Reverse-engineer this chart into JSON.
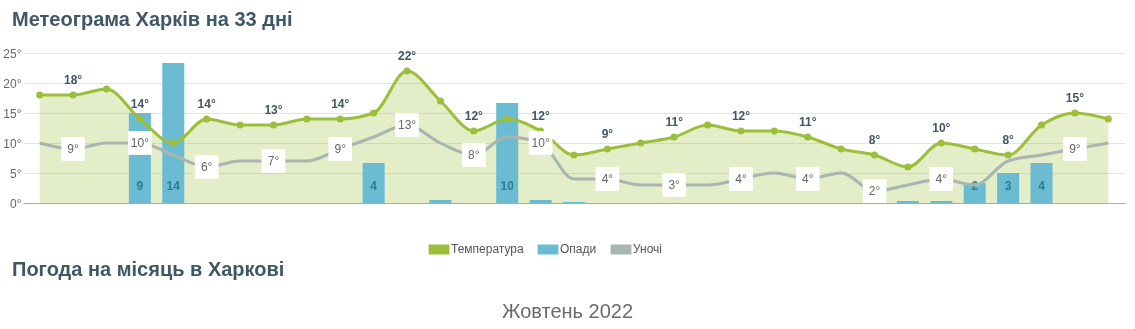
{
  "chart_data": {
    "type": "line",
    "title": "Метеограма Харків на 33 дні",
    "annotations": [
      "Погода на місяць в Харкові",
      "Жовтень 2022"
    ],
    "categories": [
      null,
      null,
      null,
      null,
      null,
      null,
      null,
      null,
      null,
      null,
      null,
      null,
      null,
      null,
      null,
      null,
      null,
      null,
      null,
      null,
      null,
      null,
      null,
      null,
      null,
      null,
      null,
      null,
      null,
      null,
      null,
      null,
      null
    ],
    "series": [
      {
        "name": "Температура",
        "type": "area",
        "marker": "circle",
        "color": "#9bbf3a",
        "values": [
          18,
          18,
          19,
          14,
          10,
          14,
          13,
          13,
          14,
          14,
          15,
          22,
          17,
          12,
          14,
          12,
          8,
          9,
          10,
          11,
          13,
          12,
          12,
          11,
          9,
          8,
          6,
          10,
          9,
          8,
          13,
          15,
          14
        ],
        "value_labels": [
          null,
          "18°",
          null,
          "14°",
          null,
          "14°",
          null,
          "13°",
          null,
          "14°",
          null,
          "22°",
          null,
          "12°",
          null,
          "12°",
          null,
          "9°",
          null,
          "11°",
          null,
          "12°",
          null,
          "11°",
          null,
          "8°",
          null,
          "10°",
          null,
          "8°",
          null,
          "15°",
          null
        ]
      },
      {
        "name": "Опади",
        "type": "bar",
        "axis": "y2",
        "color": "#6bbcd3",
        "values": [
          0,
          0,
          0,
          9,
          14,
          0,
          0,
          0,
          0,
          0,
          4,
          0,
          0.3,
          0,
          10,
          0.3,
          0.1,
          0,
          0,
          0,
          0,
          0,
          0,
          0,
          0,
          0,
          0.2,
          0.2,
          2,
          3,
          4,
          0,
          0
        ],
        "value_labels": [
          null,
          null,
          null,
          "9",
          "14",
          null,
          null,
          null,
          null,
          null,
          "4",
          null,
          null,
          null,
          "10",
          null,
          null,
          null,
          null,
          null,
          null,
          null,
          null,
          null,
          null,
          null,
          null,
          null,
          "2",
          "3",
          "4",
          null,
          null
        ]
      },
      {
        "name": "Уночі",
        "color": "#a9b5b1",
        "values": [
          10,
          9,
          10,
          10,
          8,
          6,
          7,
          7,
          7,
          9,
          11,
          13,
          10,
          8,
          11,
          10,
          4,
          4,
          3,
          3,
          3,
          4,
          5,
          4,
          5,
          2,
          3,
          4,
          3,
          7,
          8,
          9,
          10
        ],
        "value_labels": [
          null,
          "9°",
          null,
          "10°",
          null,
          "6°",
          null,
          "7°",
          null,
          "9°",
          null,
          "13°",
          null,
          "8°",
          null,
          "10°",
          null,
          "4°",
          null,
          "3°",
          null,
          "4°",
          null,
          "4°",
          null,
          "2°",
          null,
          "4°",
          null,
          null,
          null,
          "9°",
          null
        ]
      }
    ],
    "ylim": [
      0,
      25
    ],
    "yticks": [
      {
        "value": 0,
        "label": "0°"
      },
      {
        "value": 5,
        "label": "5°"
      },
      {
        "value": 10,
        "label": "10°"
      },
      {
        "value": 15,
        "label": "15°"
      },
      {
        "value": 20,
        "label": "20°"
      },
      {
        "value": 25,
        "label": "25°"
      }
    ],
    "y2lim": [
      0,
      15
    ],
    "tick_labels": "y",
    "grid": "y",
    "legend": "bottom"
  }
}
